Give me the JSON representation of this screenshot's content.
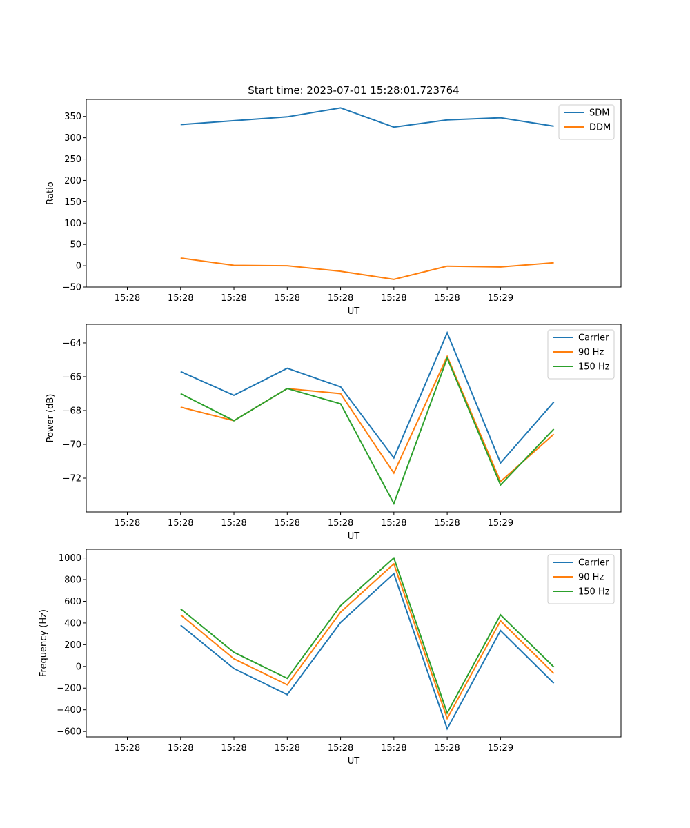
{
  "chart_data": [
    {
      "type": "line",
      "title": "Start time: 2023-07-01 15:28:01.723764",
      "xlabel": "UT",
      "ylabel": "Ratio",
      "x_tick_labels": [
        "15:28",
        "15:28",
        "15:28",
        "15:28",
        "15:28",
        "15:28",
        "15:28",
        "15:29"
      ],
      "x": [
        1,
        2,
        3,
        4,
        5,
        6,
        7,
        8
      ],
      "xlim": [
        -0.77,
        9.26
      ],
      "ylim": [
        -50,
        390
      ],
      "yticks": [
        -50,
        0,
        50,
        100,
        150,
        200,
        250,
        300,
        350
      ],
      "ytick_labels": [
        "−50",
        "0",
        "50",
        "100",
        "150",
        "200",
        "250",
        "300",
        "350"
      ],
      "legend_position": "top-right",
      "series": [
        {
          "name": "SDM",
          "color": "#1f77b4",
          "values": [
            331,
            340,
            349,
            370,
            325,
            342,
            347,
            327
          ]
        },
        {
          "name": "DDM",
          "color": "#ff7f0e",
          "values": [
            18,
            1,
            0,
            -13,
            -32,
            -1,
            -3,
            7
          ]
        }
      ]
    },
    {
      "type": "line",
      "title": "",
      "xlabel": "UT",
      "ylabel": "Power (dB)",
      "x_tick_labels": [
        "15:28",
        "15:28",
        "15:28",
        "15:28",
        "15:28",
        "15:28",
        "15:28",
        "15:29"
      ],
      "x": [
        1,
        2,
        3,
        4,
        5,
        6,
        7,
        8
      ],
      "xlim": [
        -0.77,
        9.26
      ],
      "ylim": [
        -74.0,
        -62.9
      ],
      "yticks": [
        -72,
        -70,
        -68,
        -66,
        -64
      ],
      "ytick_labels": [
        "−72",
        "−70",
        "−68",
        "−66",
        "−64"
      ],
      "legend_position": "top-right",
      "series": [
        {
          "name": "Carrier",
          "color": "#1f77b4",
          "values": [
            -65.7,
            -67.1,
            -65.5,
            -66.6,
            -70.8,
            -63.4,
            -71.1,
            -67.5
          ]
        },
        {
          "name": "90 Hz",
          "color": "#ff7f0e",
          "values": [
            -67.8,
            -68.6,
            -66.7,
            -67.0,
            -71.7,
            -64.8,
            -72.2,
            -69.4
          ]
        },
        {
          "name": "150 Hz",
          "color": "#2ca02c",
          "values": [
            -67.0,
            -68.6,
            -66.7,
            -67.6,
            -73.5,
            -64.9,
            -72.4,
            -69.1
          ]
        }
      ]
    },
    {
      "type": "line",
      "title": "",
      "xlabel": "UT",
      "ylabel": "Frequency (Hz)",
      "x_tick_labels": [
        "15:28",
        "15:28",
        "15:28",
        "15:28",
        "15:28",
        "15:28",
        "15:28",
        "15:29"
      ],
      "x": [
        1,
        2,
        3,
        4,
        5,
        6,
        7,
        8
      ],
      "xlim": [
        -0.77,
        9.26
      ],
      "ylim": [
        -650,
        1080
      ],
      "yticks": [
        -600,
        -400,
        -200,
        0,
        200,
        400,
        600,
        800,
        1000
      ],
      "ytick_labels": [
        "−600",
        "−400",
        "−200",
        "0",
        "200",
        "400",
        "600",
        "800",
        "1000"
      ],
      "legend_position": "top-right",
      "series": [
        {
          "name": "Carrier",
          "color": "#1f77b4",
          "values": [
            380,
            -20,
            -260,
            405,
            855,
            -575,
            330,
            -155
          ]
        },
        {
          "name": "90 Hz",
          "color": "#ff7f0e",
          "values": [
            475,
            70,
            -170,
            500,
            945,
            -480,
            420,
            -65
          ]
        },
        {
          "name": "150 Hz",
          "color": "#2ca02c",
          "values": [
            530,
            130,
            -110,
            560,
            1000,
            -430,
            475,
            -5
          ]
        }
      ]
    }
  ]
}
